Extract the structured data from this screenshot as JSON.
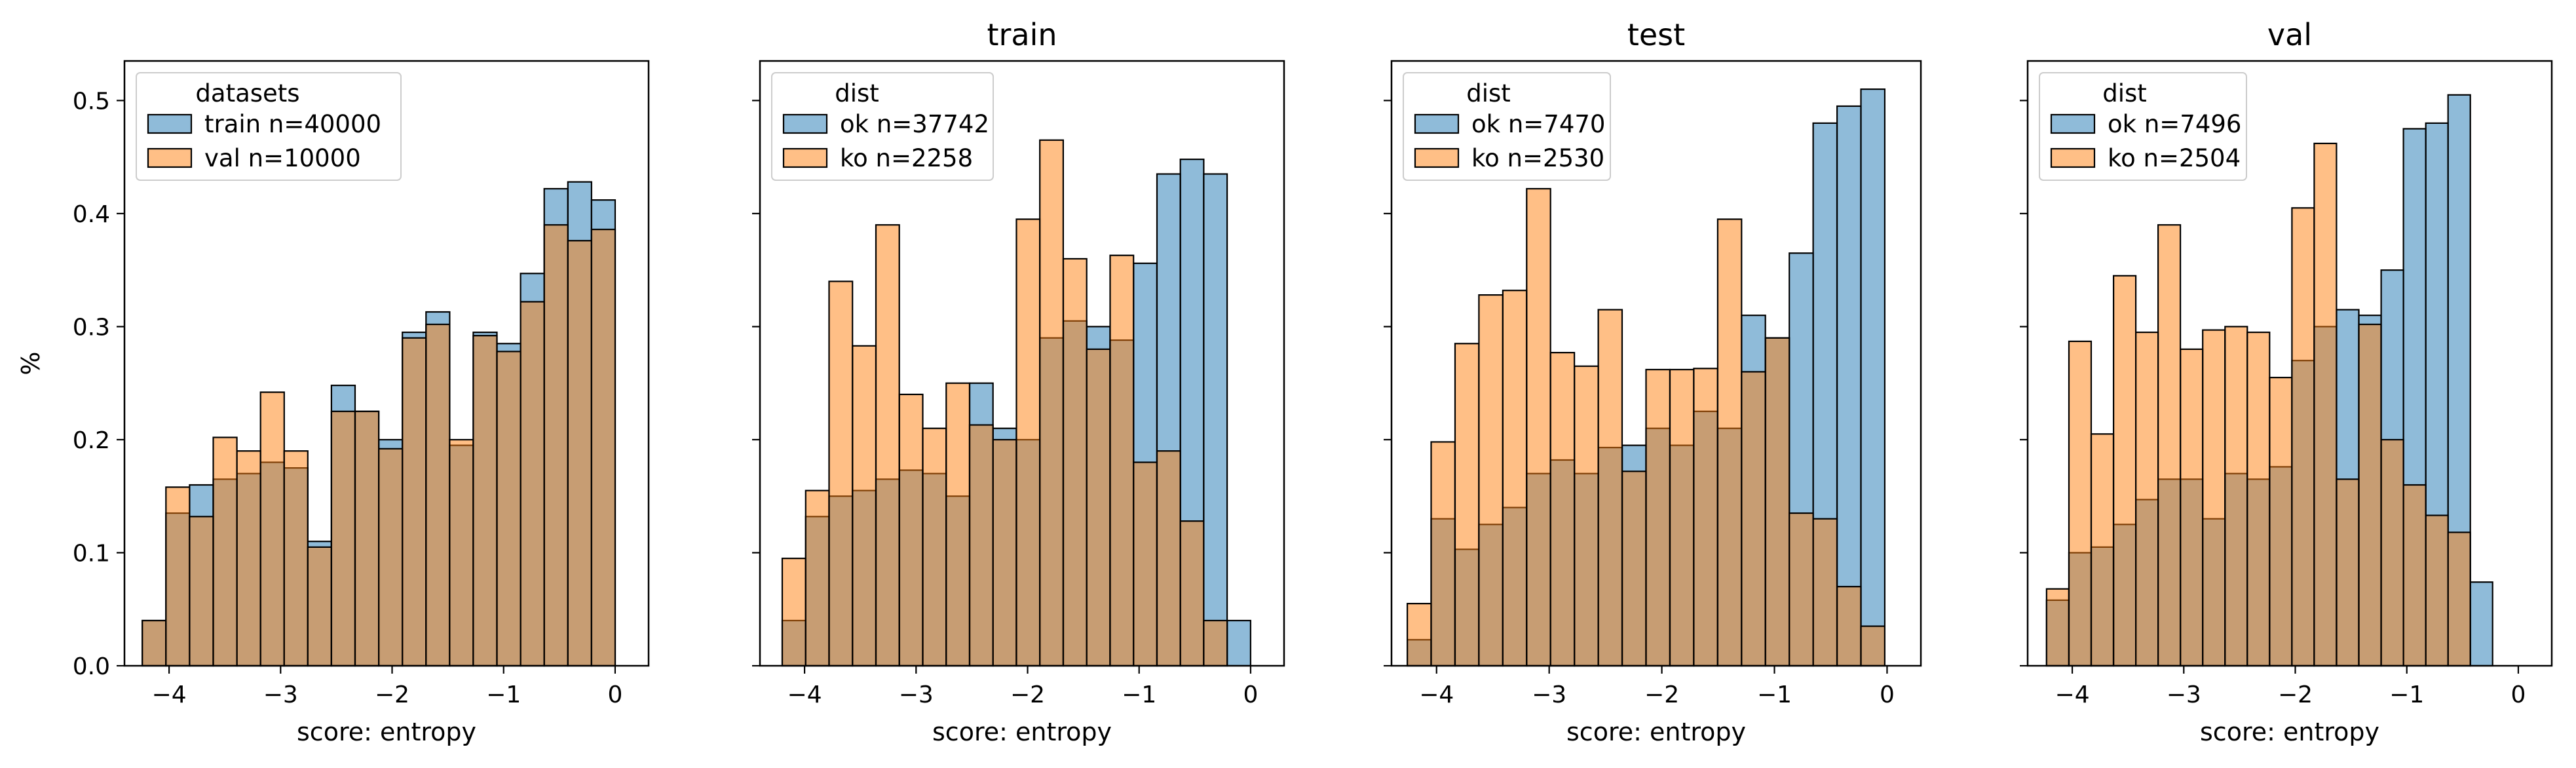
{
  "colors": {
    "blue": "#1f77b4",
    "orange": "#ff7f0e",
    "alpha": 0.5,
    "edge": "#000000"
  },
  "chart_data": [
    {
      "type": "bar",
      "title": "",
      "xlabel": "score: entropy",
      "ylabel": "%",
      "xlim": [
        -4.4,
        0.3
      ],
      "ylim": [
        0,
        0.535
      ],
      "xticks": [
        -4,
        -3,
        -2,
        -1,
        0
      ],
      "xtick_labels": [
        "−4",
        "−3",
        "−2",
        "−1",
        "0"
      ],
      "yticks": [
        0,
        0.1,
        0.2,
        0.3,
        0.4,
        0.5
      ],
      "ytick_labels": [
        "0.0",
        "0.1",
        "0.2",
        "0.3",
        "0.4",
        "0.5"
      ],
      "show_yticklabels": true,
      "bin_left": -4.24,
      "bin_width": 0.212,
      "legend": {
        "title": "datasets",
        "placement": "upper left"
      },
      "series": [
        {
          "name": "train n=40000",
          "color": "blue",
          "values": [
            0.04,
            0.135,
            0.16,
            0.165,
            0.17,
            0.18,
            0.175,
            0.11,
            0.248,
            0.225,
            0.2,
            0.295,
            0.313,
            0.195,
            0.295,
            0.285,
            0.347,
            0.422,
            0.428,
            0.412
          ]
        },
        {
          "name": "val n=10000",
          "color": "orange",
          "values": [
            0.04,
            0.158,
            0.132,
            0.202,
            0.19,
            0.242,
            0.19,
            0.105,
            0.225,
            0.225,
            0.192,
            0.29,
            0.302,
            0.2,
            0.292,
            0.278,
            0.322,
            0.39,
            0.376,
            0.386
          ]
        }
      ]
    },
    {
      "type": "bar",
      "title": "train",
      "xlabel": "score: entropy",
      "ylabel": "",
      "xlim": [
        -4.4,
        0.3
      ],
      "ylim": [
        0,
        0.535
      ],
      "xticks": [
        -4,
        -3,
        -2,
        -1,
        0
      ],
      "xtick_labels": [
        "−4",
        "−3",
        "−2",
        "−1",
        "0"
      ],
      "yticks": [
        0,
        0.1,
        0.2,
        0.3,
        0.4,
        0.5
      ],
      "ytick_labels": [
        "0.0",
        "0.1",
        "0.2",
        "0.3",
        "0.4",
        "0.5"
      ],
      "show_yticklabels": false,
      "bin_left": -4.2,
      "bin_width": 0.21,
      "legend": {
        "title": "dist",
        "placement": "upper left"
      },
      "series": [
        {
          "name": "ok n=37742",
          "color": "blue",
          "values": [
            0.04,
            0.132,
            0.15,
            0.155,
            0.165,
            0.173,
            0.17,
            0.15,
            0.25,
            0.21,
            0.2,
            0.29,
            0.305,
            0.3,
            0.288,
            0.356,
            0.435,
            0.448,
            0.435,
            0.04
          ]
        },
        {
          "name": "ko n=2258",
          "color": "orange",
          "values": [
            0.095,
            0.155,
            0.34,
            0.283,
            0.39,
            0.24,
            0.21,
            0.25,
            0.213,
            0.2,
            0.395,
            0.465,
            0.36,
            0.28,
            0.363,
            0.18,
            0.19,
            0.128,
            0.04,
            0.0
          ]
        }
      ]
    },
    {
      "type": "bar",
      "title": "test",
      "xlabel": "score: entropy",
      "ylabel": "",
      "xlim": [
        -4.4,
        0.3
      ],
      "ylim": [
        0,
        0.535
      ],
      "xticks": [
        -4,
        -3,
        -2,
        -1,
        0
      ],
      "xtick_labels": [
        "−4",
        "−3",
        "−2",
        "−1",
        "0"
      ],
      "yticks": [
        0,
        0.1,
        0.2,
        0.3,
        0.4,
        0.5
      ],
      "ytick_labels": [
        "0.0",
        "0.1",
        "0.2",
        "0.3",
        "0.4",
        "0.5"
      ],
      "show_yticklabels": false,
      "bin_left": -4.26,
      "bin_width": 0.212,
      "legend": {
        "title": "dist",
        "placement": "upper left"
      },
      "series": [
        {
          "name": "ok n=7470",
          "color": "blue",
          "values": [
            0.023,
            0.13,
            0.103,
            0.125,
            0.14,
            0.17,
            0.182,
            0.17,
            0.193,
            0.195,
            0.21,
            0.195,
            0.225,
            0.21,
            0.31,
            0.29,
            0.365,
            0.48,
            0.495,
            0.51
          ]
        },
        {
          "name": "ko n=2530",
          "color": "orange",
          "values": [
            0.055,
            0.198,
            0.285,
            0.328,
            0.332,
            0.422,
            0.277,
            0.265,
            0.315,
            0.172,
            0.262,
            0.262,
            0.263,
            0.395,
            0.26,
            0.29,
            0.135,
            0.13,
            0.07,
            0.035
          ]
        }
      ]
    },
    {
      "type": "bar",
      "title": "val",
      "xlabel": "score: entropy",
      "ylabel": "",
      "xlim": [
        -4.4,
        0.3
      ],
      "ylim": [
        0,
        0.535
      ],
      "xticks": [
        -4,
        -3,
        -2,
        -1,
        0
      ],
      "xtick_labels": [
        "−4",
        "−3",
        "−2",
        "−1",
        "0"
      ],
      "yticks": [
        0,
        0.1,
        0.2,
        0.3,
        0.4,
        0.5
      ],
      "ytick_labels": [
        "0.0",
        "0.1",
        "0.2",
        "0.3",
        "0.4",
        "0.5"
      ],
      "show_yticklabels": false,
      "bin_left": -4.23,
      "bin_width": 0.2,
      "legend": {
        "title": "dist",
        "placement": "upper left"
      },
      "series": [
        {
          "name": "ok n=7496",
          "color": "blue",
          "values": [
            0.058,
            0.1,
            0.105,
            0.125,
            0.147,
            0.165,
            0.165,
            0.13,
            0.17,
            0.165,
            0.176,
            0.27,
            0.3,
            0.315,
            0.31,
            0.35,
            0.475,
            0.48,
            0.505,
            0.074
          ]
        },
        {
          "name": "ko n=2504",
          "color": "orange",
          "values": [
            0.068,
            0.287,
            0.205,
            0.345,
            0.295,
            0.39,
            0.28,
            0.297,
            0.3,
            0.295,
            0.255,
            0.405,
            0.462,
            0.165,
            0.302,
            0.2,
            0.16,
            0.133,
            0.118,
            0.0
          ]
        }
      ]
    }
  ]
}
